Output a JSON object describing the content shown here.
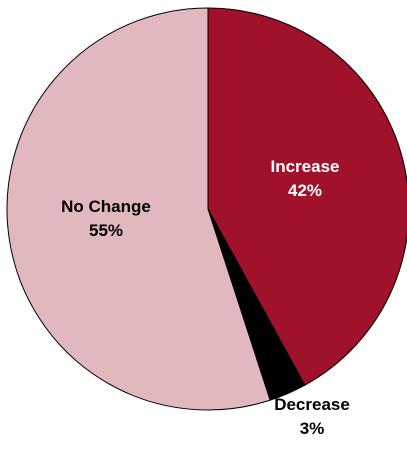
{
  "chart_data": {
    "type": "pie",
    "title": "",
    "start_angle_deg": 0,
    "direction": "clockwise",
    "slices": [
      {
        "label": "Increase",
        "value": 42,
        "value_label": "42%",
        "color": "#a0112b",
        "label_color": "#ffffff",
        "label_position": "inside"
      },
      {
        "label": "Decrease",
        "value": 3,
        "value_label": "3%",
        "color": "#000000",
        "label_color": "#000000",
        "label_position": "outside-bottom"
      },
      {
        "label": "No Change",
        "value": 55,
        "value_label": "55%",
        "color": "#e2b8bf",
        "label_color": "#000000",
        "label_position": "inside"
      }
    ],
    "edge_color": "#000000"
  }
}
